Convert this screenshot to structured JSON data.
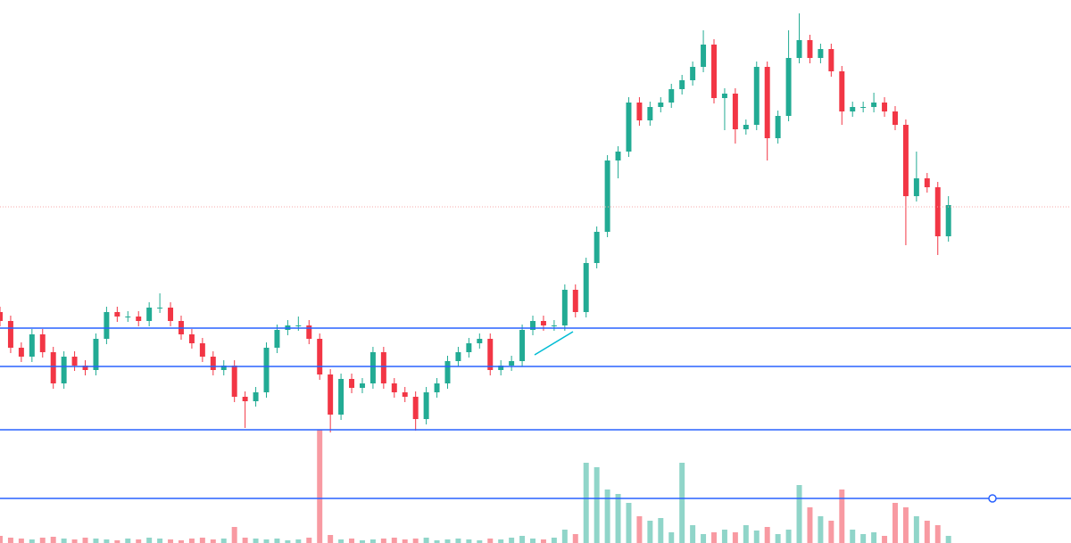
{
  "chart_data": {
    "type": "candlestick",
    "up_color": "#22ab94",
    "down_color": "#f23645",
    "level_color": "#2962ff",
    "last_price_color": "#f7a9a9",
    "xlim": [
      0,
      100.5
    ],
    "ylim": [
      0,
      609
    ],
    "volume_ylim": [
      0,
      609
    ],
    "open": [
      259,
      249,
      219,
      209,
      234,
      214,
      179,
      209,
      199,
      194,
      229,
      259,
      254,
      254,
      249,
      264,
      264,
      249,
      234,
      224,
      209,
      194,
      199,
      164,
      159,
      169,
      219,
      239,
      244,
      244,
      229,
      189,
      144,
      184,
      174,
      179,
      214,
      179,
      169,
      164,
      139,
      169,
      179,
      204,
      214,
      224,
      229,
      194,
      199,
      204,
      239,
      249,
      244,
      244,
      284,
      259,
      314,
      349,
      429,
      439,
      494,
      474,
      489,
      494,
      509,
      519,
      534,
      559,
      499,
      504,
      464,
      469,
      534,
      454,
      479,
      544,
      564,
      544,
      554,
      529,
      484,
      489,
      489,
      494,
      484,
      469,
      389,
      409,
      399,
      344
    ],
    "high": [
      265,
      255,
      225,
      240,
      240,
      220,
      215,
      215,
      205,
      235,
      265,
      265,
      260,
      260,
      270,
      280,
      270,
      255,
      240,
      230,
      215,
      205,
      205,
      170,
      175,
      225,
      245,
      250,
      254,
      250,
      235,
      195,
      190,
      190,
      185,
      220,
      220,
      185,
      175,
      170,
      175,
      185,
      210,
      220,
      230,
      235,
      235,
      205,
      210,
      245,
      255,
      255,
      250,
      290,
      290,
      320,
      355,
      435,
      445,
      500,
      500,
      495,
      500,
      515,
      525,
      540,
      575,
      565,
      510,
      510,
      475,
      540,
      540,
      485,
      575,
      594,
      570,
      560,
      560,
      535,
      495,
      495,
      505,
      500,
      490,
      475,
      439,
      415,
      405,
      389
    ],
    "low": [
      243,
      213,
      203,
      203,
      208,
      173,
      173,
      193,
      188,
      188,
      223,
      248,
      248,
      243,
      243,
      258,
      243,
      228,
      218,
      203,
      188,
      188,
      158,
      129,
      153,
      163,
      213,
      233,
      238,
      223,
      183,
      124,
      138,
      168,
      168,
      173,
      173,
      163,
      158,
      126,
      133,
      163,
      173,
      198,
      208,
      218,
      188,
      188,
      193,
      198,
      233,
      238,
      238,
      238,
      253,
      253,
      308,
      343,
      409,
      433,
      468,
      468,
      483,
      488,
      503,
      513,
      528,
      493,
      463,
      448,
      458,
      463,
      429,
      448,
      473,
      538,
      538,
      538,
      523,
      469,
      478,
      483,
      483,
      478,
      463,
      334,
      383,
      393,
      323,
      338
    ],
    "close": [
      249,
      219,
      209,
      234,
      214,
      179,
      209,
      199,
      194,
      229,
      259,
      254,
      254,
      249,
      264,
      264,
      249,
      234,
      224,
      209,
      194,
      199,
      164,
      159,
      169,
      219,
      239,
      244,
      244,
      229,
      189,
      144,
      184,
      174,
      179,
      214,
      179,
      169,
      164,
      139,
      169,
      179,
      204,
      214,
      224,
      229,
      194,
      199,
      204,
      239,
      249,
      244,
      244,
      284,
      259,
      314,
      349,
      429,
      439,
      494,
      474,
      489,
      494,
      509,
      519,
      534,
      559,
      499,
      504,
      464,
      469,
      534,
      454,
      479,
      544,
      564,
      544,
      554,
      529,
      484,
      489,
      489,
      494,
      484,
      469,
      389,
      409,
      399,
      344,
      379
    ],
    "volume": [
      8,
      6,
      5,
      4,
      6,
      7,
      5,
      4,
      6,
      5,
      4,
      3,
      5,
      4,
      6,
      5,
      4,
      3,
      5,
      6,
      4,
      5,
      18,
      6,
      5,
      4,
      5,
      3,
      4,
      6,
      127,
      9,
      4,
      5,
      3,
      4,
      5,
      6,
      4,
      5,
      6,
      3,
      4,
      5,
      4,
      3,
      5,
      4,
      6,
      8,
      5,
      4,
      6,
      15,
      10,
      90,
      85,
      60,
      55,
      45,
      30,
      25,
      28,
      12,
      90,
      20,
      10,
      12,
      15,
      12,
      20,
      14,
      18,
      10,
      15,
      65,
      40,
      30,
      25,
      60,
      15,
      10,
      12,
      8,
      45,
      40,
      30,
      25,
      20,
      8
    ],
    "levels": [
      241,
      198,
      127,
      50
    ],
    "last_price": 377
  }
}
